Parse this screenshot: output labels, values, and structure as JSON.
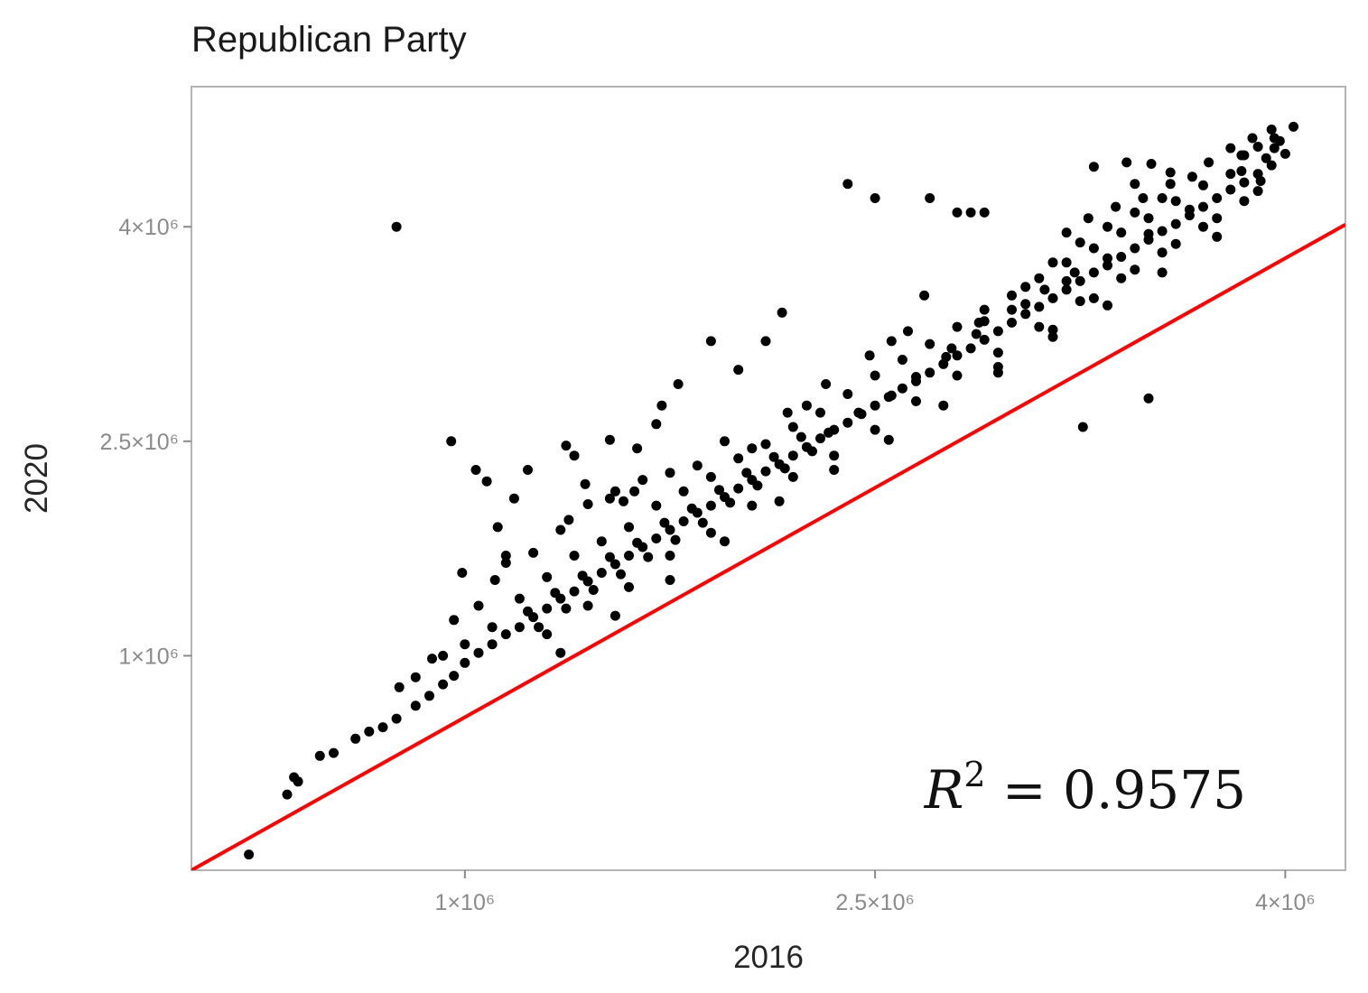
{
  "chart_data": {
    "type": "scatter",
    "title": "Republican Party",
    "xlabel": "2016",
    "ylabel": "2020",
    "xlim": [
      0,
      4220000
    ],
    "ylim": [
      -500000,
      4980000
    ],
    "x_ticks": [
      {
        "value": 1000000,
        "label": "1×10⁶"
      },
      {
        "value": 2500000,
        "label": "2.5×10⁶"
      },
      {
        "value": 4000000,
        "label": "4×10⁶"
      }
    ],
    "y_ticks": [
      {
        "value": 1000000,
        "label": "1×10⁶"
      },
      {
        "value": 2500000,
        "label": "2.5×10⁶"
      },
      {
        "value": 4000000,
        "label": "4×10⁶"
      }
    ],
    "grid": false,
    "colors": {
      "points": "#000000",
      "fit_line": "#ff0000",
      "frame": "#b3b3b3"
    },
    "fit_line": {
      "slope": 1.07,
      "intercept": -500000,
      "color": "#ff0000"
    },
    "annotation": {
      "text": "R² = 0.9575",
      "base": "R",
      "sup": "2",
      "rest": " = 0.9575"
    },
    "series": [
      {
        "points": [
          [
            210000,
            -390000
          ],
          [
            350000,
            30000
          ],
          [
            375000,
            150000
          ],
          [
            390000,
            120000
          ],
          [
            470000,
            300000
          ],
          [
            520000,
            320000
          ],
          [
            600000,
            420000
          ],
          [
            650000,
            470000
          ],
          [
            700000,
            500000
          ],
          [
            750000,
            560000
          ],
          [
            820000,
            650000
          ],
          [
            870000,
            720000
          ],
          [
            920000,
            800000
          ],
          [
            960000,
            860000
          ],
          [
            1000000,
            950000
          ],
          [
            1050000,
            1020000
          ],
          [
            1100000,
            1080000
          ],
          [
            1150000,
            1150000
          ],
          [
            1200000,
            1200000
          ],
          [
            1250000,
            1270000
          ],
          [
            1300000,
            1330000
          ],
          [
            1350000,
            1400000
          ],
          [
            1400000,
            1450000
          ],
          [
            1450000,
            1520000
          ],
          [
            1500000,
            1580000
          ],
          [
            1550000,
            1640000
          ],
          [
            1600000,
            1700000
          ],
          [
            1650000,
            1760000
          ],
          [
            1700000,
            1820000
          ],
          [
            1750000,
            1880000
          ],
          [
            1800000,
            1940000
          ],
          [
            1850000,
            2000000
          ],
          [
            1900000,
            2050000
          ],
          [
            1950000,
            2110000
          ],
          [
            2000000,
            2170000
          ],
          [
            2050000,
            2230000
          ],
          [
            2100000,
            2290000
          ],
          [
            2150000,
            2340000
          ],
          [
            2200000,
            2400000
          ],
          [
            2250000,
            2460000
          ],
          [
            2300000,
            2520000
          ],
          [
            2350000,
            2580000
          ],
          [
            2400000,
            2630000
          ],
          [
            2450000,
            2690000
          ],
          [
            2500000,
            2750000
          ],
          [
            2550000,
            2810000
          ],
          [
            2600000,
            2870000
          ],
          [
            2650000,
            2920000
          ],
          [
            2700000,
            2980000
          ],
          [
            2750000,
            3040000
          ],
          [
            2800000,
            3100000
          ],
          [
            2850000,
            3150000
          ],
          [
            2900000,
            3210000
          ],
          [
            2950000,
            3270000
          ],
          [
            3000000,
            3330000
          ],
          [
            3050000,
            3390000
          ],
          [
            3100000,
            3440000
          ],
          [
            3150000,
            3500000
          ],
          [
            3200000,
            3560000
          ],
          [
            3250000,
            3620000
          ],
          [
            3300000,
            3680000
          ],
          [
            3350000,
            3730000
          ],
          [
            3400000,
            3790000
          ],
          [
            3450000,
            3850000
          ],
          [
            3500000,
            3910000
          ],
          [
            3550000,
            3970000
          ],
          [
            3600000,
            4020000
          ],
          [
            3650000,
            4080000
          ],
          [
            3700000,
            4140000
          ],
          [
            3750000,
            4200000
          ],
          [
            3800000,
            4260000
          ],
          [
            3850000,
            4310000
          ],
          [
            3900000,
            4370000
          ],
          [
            3950000,
            4430000
          ],
          [
            4000000,
            4510000
          ],
          [
            1200000,
            1400000
          ],
          [
            1300000,
            1550000
          ],
          [
            1400000,
            1700000
          ],
          [
            1500000,
            1800000
          ],
          [
            1600000,
            1900000
          ],
          [
            1700000,
            2050000
          ],
          [
            1800000,
            2150000
          ],
          [
            1900000,
            2250000
          ],
          [
            2000000,
            2380000
          ],
          [
            2100000,
            2480000
          ],
          [
            2200000,
            2600000
          ],
          [
            2300000,
            2700000
          ],
          [
            2400000,
            2830000
          ],
          [
            2500000,
            2960000
          ],
          [
            2600000,
            3070000
          ],
          [
            2700000,
            3180000
          ],
          [
            2800000,
            3300000
          ],
          [
            2900000,
            3420000
          ],
          [
            3000000,
            3520000
          ],
          [
            3100000,
            3640000
          ],
          [
            3200000,
            3750000
          ],
          [
            3300000,
            3850000
          ],
          [
            3400000,
            3960000
          ],
          [
            3500000,
            4060000
          ],
          [
            3600000,
            4180000
          ],
          [
            3700000,
            4290000
          ],
          [
            3800000,
            4370000
          ],
          [
            1300000,
            1150000
          ],
          [
            1450000,
            1350000
          ],
          [
            1600000,
            1480000
          ],
          [
            1750000,
            1700000
          ],
          [
            1900000,
            1860000
          ],
          [
            2050000,
            2050000
          ],
          [
            2200000,
            2250000
          ],
          [
            2350000,
            2400000
          ],
          [
            2500000,
            2580000
          ],
          [
            2650000,
            2780000
          ],
          [
            2800000,
            2960000
          ],
          [
            2950000,
            3120000
          ],
          [
            3100000,
            3300000
          ],
          [
            3250000,
            3480000
          ],
          [
            3400000,
            3640000
          ],
          [
            3550000,
            3820000
          ],
          [
            3700000,
            4000000
          ],
          [
            3850000,
            4180000
          ],
          [
            2250000,
            2750000
          ],
          [
            2320000,
            2900000
          ],
          [
            2480000,
            3100000
          ],
          [
            2560000,
            3200000
          ],
          [
            2620000,
            3270000
          ],
          [
            2680000,
            3520000
          ],
          [
            3050000,
            3580000
          ],
          [
            3150000,
            3750000
          ],
          [
            3250000,
            3890000
          ],
          [
            3350000,
            4000000
          ],
          [
            3450000,
            4100000
          ],
          [
            3550000,
            4200000
          ],
          [
            2180000,
            2700000
          ],
          [
            2050000,
            2450000
          ],
          [
            1950000,
            2500000
          ],
          [
            1850000,
            2330000
          ],
          [
            1750000,
            2280000
          ],
          [
            1650000,
            2230000
          ],
          [
            1550000,
            2150000
          ],
          [
            1450000,
            2060000
          ],
          [
            1350000,
            1880000
          ],
          [
            1250000,
            1720000
          ],
          [
            1150000,
            1650000
          ],
          [
            1350000,
            1020000
          ],
          [
            1550000,
            1280000
          ],
          [
            1750000,
            1530000
          ],
          [
            1950000,
            1800000
          ],
          [
            2150000,
            2080000
          ],
          [
            2350000,
            2300000
          ],
          [
            2550000,
            2510000
          ],
          [
            2750000,
            2750000
          ],
          [
            2950000,
            2980000
          ],
          [
            3150000,
            3230000
          ],
          [
            3350000,
            3450000
          ],
          [
            3550000,
            3680000
          ],
          [
            3750000,
            3930000
          ],
          [
            3900000,
            4250000
          ],
          [
            2900000,
            3340000
          ],
          [
            3050000,
            3460000
          ],
          [
            3200000,
            3620000
          ],
          [
            3350000,
            3780000
          ],
          [
            3500000,
            3950000
          ],
          [
            3650000,
            4120000
          ],
          [
            2950000,
            3020000
          ],
          [
            3150000,
            3280000
          ],
          [
            3300000,
            3500000
          ],
          [
            3450000,
            3700000
          ],
          [
            3600000,
            3880000
          ],
          [
            3750000,
            4060000
          ],
          [
            3720000,
            4450000
          ],
          [
            3800000,
            4550000
          ],
          [
            3880000,
            4620000
          ],
          [
            3900000,
            4560000
          ],
          [
            3960000,
            4620000
          ],
          [
            3840000,
            4500000
          ],
          [
            3660000,
            4350000
          ],
          [
            3580000,
            4300000
          ],
          [
            3480000,
            4200000
          ],
          [
            3380000,
            4140000
          ],
          [
            3280000,
            4060000
          ],
          [
            3200000,
            3960000
          ],
          [
            3300000,
            4420000
          ],
          [
            3420000,
            4450000
          ],
          [
            3510000,
            4440000
          ],
          [
            3450000,
            4300000
          ],
          [
            3580000,
            4380000
          ],
          [
            3930000,
            4480000
          ],
          [
            3910000,
            4320000
          ],
          [
            3840000,
            4390000
          ],
          [
            3960000,
            4550000
          ],
          [
            3980000,
            4600000
          ],
          [
            2870000,
            3250000
          ],
          [
            2760000,
            3090000
          ],
          [
            2650000,
            2950000
          ],
          [
            2560000,
            2820000
          ],
          [
            2440000,
            2700000
          ],
          [
            2330000,
            2560000
          ],
          [
            2780000,
            3150000
          ],
          [
            2880000,
            3330000
          ],
          [
            3000000,
            3420000
          ],
          [
            3120000,
            3560000
          ],
          [
            3230000,
            3680000
          ],
          [
            1230000,
            1310000
          ],
          [
            1330000,
            1440000
          ],
          [
            1430000,
            1560000
          ],
          [
            1530000,
            1690000
          ],
          [
            1630000,
            1790000
          ],
          [
            1730000,
            1930000
          ],
          [
            1830000,
            2030000
          ],
          [
            1930000,
            2160000
          ],
          [
            2030000,
            2280000
          ],
          [
            2130000,
            2390000
          ],
          [
            2230000,
            2530000
          ],
          [
            1270000,
            1200000
          ],
          [
            1370000,
            1330000
          ],
          [
            1470000,
            1460000
          ],
          [
            1570000,
            1570000
          ],
          [
            1670000,
            1690000
          ],
          [
            1770000,
            1810000
          ],
          [
            1870000,
            1930000
          ],
          [
            1970000,
            2070000
          ],
          [
            2070000,
            2190000
          ],
          [
            2170000,
            2310000
          ],
          [
            2270000,
            2430000
          ],
          [
            1100000,
            1200000
          ],
          [
            1000000,
            1080000
          ],
          [
            920000,
            1000000
          ],
          [
            880000,
            980000
          ],
          [
            820000,
            850000
          ],
          [
            760000,
            780000
          ],
          [
            1050000,
            1350000
          ],
          [
            1110000,
            1530000
          ],
          [
            1150000,
            1700000
          ],
          [
            990000,
            1580000
          ],
          [
            960000,
            1250000
          ],
          [
            1380000,
            1950000
          ],
          [
            1440000,
            2200000
          ],
          [
            1530000,
            2100000
          ],
          [
            1620000,
            2150000
          ],
          [
            3850000,
            4500000
          ],
          [
            3950000,
            4680000
          ],
          [
            4030000,
            4700000
          ],
          [
            1400000,
            2400000
          ],
          [
            1580000,
            2080000
          ],
          [
            2400000,
            4300000
          ],
          [
            2500000,
            4200000
          ],
          [
            2800000,
            4100000
          ],
          [
            2850000,
            4100000
          ],
          [
            2700000,
            4200000
          ],
          [
            2900000,
            4100000
          ],
          [
            2000000,
            3000000
          ],
          [
            2100000,
            3200000
          ],
          [
            2160000,
            3400000
          ],
          [
            1900000,
            3200000
          ],
          [
            1780000,
            2900000
          ],
          [
            1720000,
            2750000
          ],
          [
            1700000,
            2620000
          ],
          [
            1630000,
            2450000
          ],
          [
            3500000,
            2800000
          ],
          [
            3260000,
            2600000
          ],
          [
            950000,
            2500000
          ],
          [
            1040000,
            2300000
          ],
          [
            1180000,
            2100000
          ],
          [
            1120000,
            1900000
          ],
          [
            1080000,
            2220000
          ],
          [
            1230000,
            2300000
          ],
          [
            1370000,
            2470000
          ],
          [
            1530000,
            2510000
          ],
          [
            750000,
            4000000
          ]
        ]
      }
    ]
  }
}
